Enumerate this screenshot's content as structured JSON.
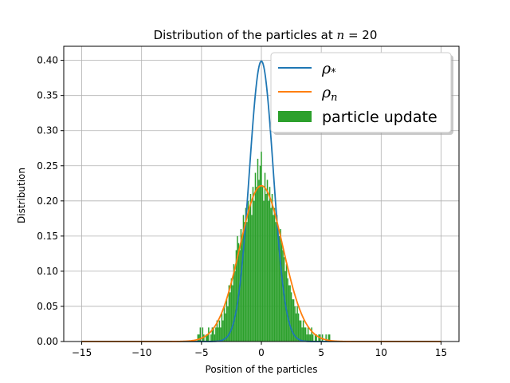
{
  "chart_data": {
    "type": "histogram+line",
    "title_text": "Distribution of the particles at ",
    "title_math_var": "n",
    "title_math_rest": " = 20",
    "xlabel": "Position of the particles",
    "ylabel": "Distribution",
    "xlim": [
      -16.5,
      16.5
    ],
    "ylim": [
      0,
      0.42
    ],
    "xticks": [
      -15,
      -10,
      -5,
      0,
      5,
      10,
      15
    ],
    "xtick_labels": [
      "−15",
      "−10",
      "−5",
      "0",
      "5",
      "10",
      "15"
    ],
    "yticks": [
      0,
      0.05,
      0.1,
      0.15,
      0.2,
      0.25,
      0.3,
      0.35,
      0.4
    ],
    "ytick_labels": [
      "0.00",
      "0.05",
      "0.10",
      "0.15",
      "0.20",
      "0.25",
      "0.30",
      "0.35",
      "0.40"
    ],
    "grid": true,
    "legend_position": "upper-right",
    "legend": [
      {
        "key": "rho_star",
        "symbol": "ρ",
        "sub": "*",
        "color": "#1f77b4",
        "kind": "line"
      },
      {
        "key": "rho_n",
        "symbol": "ρ",
        "sub": "n",
        "color": "#ff7f0e",
        "kind": "line"
      },
      {
        "key": "hist",
        "label": "particle update",
        "color": "#2ca02c",
        "kind": "patch"
      }
    ],
    "series": [
      {
        "key": "rho_star",
        "type": "line",
        "color": "#1f77b4",
        "distribution": "normal",
        "mean": 0,
        "std": 1.0,
        "x_range": [
          -15,
          15
        ]
      },
      {
        "key": "rho_n",
        "type": "line",
        "color": "#ff7f0e",
        "distribution": "normal",
        "mean": 0,
        "std": 1.8,
        "x_range": [
          -15,
          15
        ]
      }
    ],
    "histogram": {
      "color": "#2ca02c",
      "bin_width": 0.1,
      "bins": [
        [
          -5.3,
          0.01
        ],
        [
          -5.2,
          0.01
        ],
        [
          -5.1,
          0.02
        ],
        [
          -5.0,
          0.0
        ],
        [
          -4.9,
          0.02
        ],
        [
          -4.8,
          0.01
        ],
        [
          -4.7,
          0.0
        ],
        [
          -4.6,
          0.01
        ],
        [
          -4.5,
          0.01
        ],
        [
          -4.4,
          0.02
        ],
        [
          -4.3,
          0.0
        ],
        [
          -4.2,
          0.01
        ],
        [
          -4.1,
          0.02
        ],
        [
          -4.0,
          0.02
        ],
        [
          -3.9,
          0.01
        ],
        [
          -3.8,
          0.02
        ],
        [
          -3.7,
          0.03
        ],
        [
          -3.6,
          0.02
        ],
        [
          -3.5,
          0.03
        ],
        [
          -3.4,
          0.02
        ],
        [
          -3.3,
          0.04
        ],
        [
          -3.2,
          0.03
        ],
        [
          -3.1,
          0.05
        ],
        [
          -3.0,
          0.04
        ],
        [
          -2.9,
          0.06
        ],
        [
          -2.8,
          0.05
        ],
        [
          -2.7,
          0.08
        ],
        [
          -2.6,
          0.07
        ],
        [
          -2.5,
          0.09
        ],
        [
          -2.4,
          0.08
        ],
        [
          -2.3,
          0.11
        ],
        [
          -2.2,
          0.1
        ],
        [
          -2.1,
          0.13
        ],
        [
          -2.0,
          0.15
        ],
        [
          -1.9,
          0.14
        ],
        [
          -1.8,
          0.13
        ],
        [
          -1.7,
          0.16
        ],
        [
          -1.6,
          0.15
        ],
        [
          -1.5,
          0.18
        ],
        [
          -1.4,
          0.17
        ],
        [
          -1.3,
          0.19
        ],
        [
          -1.2,
          0.17
        ],
        [
          -1.1,
          0.2
        ],
        [
          -1.0,
          0.19
        ],
        [
          -0.9,
          0.21
        ],
        [
          -0.8,
          0.18
        ],
        [
          -0.7,
          0.22
        ],
        [
          -0.6,
          0.2
        ],
        [
          -0.5,
          0.24
        ],
        [
          -0.4,
          0.22
        ],
        [
          -0.3,
          0.26
        ],
        [
          -0.2,
          0.23
        ],
        [
          -0.1,
          0.25
        ],
        [
          0.0,
          0.27
        ],
        [
          0.1,
          0.22
        ],
        [
          0.2,
          0.2
        ],
        [
          0.3,
          0.24
        ],
        [
          0.4,
          0.21
        ],
        [
          0.5,
          0.23
        ],
        [
          0.6,
          0.2
        ],
        [
          0.7,
          0.22
        ],
        [
          0.8,
          0.19
        ],
        [
          0.9,
          0.21
        ],
        [
          1.0,
          0.18
        ],
        [
          1.1,
          0.19
        ],
        [
          1.2,
          0.17
        ],
        [
          1.3,
          0.18
        ],
        [
          1.4,
          0.16
        ],
        [
          1.5,
          0.15
        ],
        [
          1.6,
          0.16
        ],
        [
          1.7,
          0.14
        ],
        [
          1.8,
          0.13
        ],
        [
          1.9,
          0.12
        ],
        [
          2.0,
          0.1
        ],
        [
          2.1,
          0.11
        ],
        [
          2.2,
          0.09
        ],
        [
          2.3,
          0.08
        ],
        [
          2.4,
          0.08
        ],
        [
          2.5,
          0.07
        ],
        [
          2.6,
          0.06
        ],
        [
          2.7,
          0.06
        ],
        [
          2.8,
          0.05
        ],
        [
          2.9,
          0.04
        ],
        [
          3.0,
          0.05
        ],
        [
          3.1,
          0.04
        ],
        [
          3.2,
          0.03
        ],
        [
          3.3,
          0.03
        ],
        [
          3.4,
          0.02
        ],
        [
          3.5,
          0.03
        ],
        [
          3.6,
          0.02
        ],
        [
          3.7,
          0.02
        ],
        [
          3.8,
          0.01
        ],
        [
          3.9,
          0.02
        ],
        [
          4.0,
          0.01
        ],
        [
          4.1,
          0.01
        ],
        [
          4.2,
          0.02
        ],
        [
          4.3,
          0.01
        ],
        [
          4.4,
          0.0
        ],
        [
          4.5,
          0.01
        ],
        [
          4.6,
          0.01
        ],
        [
          4.7,
          0.0
        ],
        [
          4.8,
          0.01
        ],
        [
          4.9,
          0.01
        ],
        [
          5.0,
          0.0
        ],
        [
          5.1,
          0.01
        ],
        [
          5.2,
          0.0
        ],
        [
          5.3,
          0.0
        ],
        [
          5.4,
          0.01
        ],
        [
          5.5,
          0.0
        ],
        [
          5.6,
          0.01
        ],
        [
          5.7,
          0.01
        ]
      ]
    }
  }
}
